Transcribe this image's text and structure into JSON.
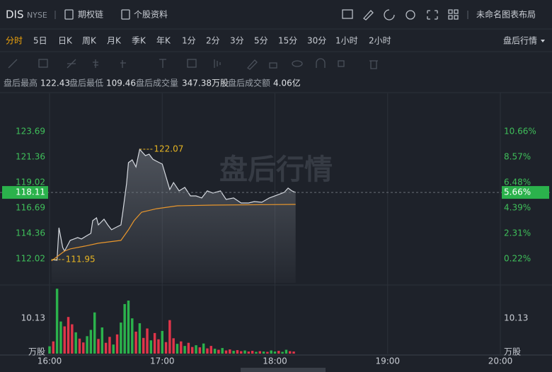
{
  "header": {
    "symbol": "DIS",
    "exchange": "NYSE",
    "links": [
      "期权链",
      "个股资料"
    ],
    "layout_name": "未命名图表布局"
  },
  "periods": {
    "items": [
      "分时",
      "5日",
      "日K",
      "周K",
      "月K",
      "季K",
      "年K",
      "1分",
      "2分",
      "3分",
      "5分",
      "15分",
      "30分",
      "1小时",
      "2小时"
    ],
    "active": 0,
    "right": "盘后行情"
  },
  "stats": [
    {
      "label": "盘后最高",
      "value": "122.43"
    },
    {
      "label": "盘后最低",
      "value": "109.46"
    },
    {
      "label": "盘后成交量",
      "value": "347.38万股"
    },
    {
      "label": "盘后成交额",
      "value": "4.06亿"
    }
  ],
  "chart_data": [
    {
      "type": "line",
      "watermark": "盘后行情",
      "xlim": [
        0,
        240
      ],
      "ylim": [
        109.81,
        127.2
      ],
      "yticks": [
        123.69,
        121.36,
        119.02,
        116.69,
        114.36,
        112.02
      ],
      "y2lim": [
        -1.754,
        13.805
      ],
      "y2ticks": [
        {
          "value": 10.66,
          "label": "10.66%"
        },
        {
          "value": 8.57,
          "label": "8.57%"
        },
        {
          "value": 6.48,
          "label": "6.48%"
        },
        {
          "value": 4.39,
          "label": "4.39%"
        },
        {
          "value": 2.31,
          "label": "2.31%"
        },
        {
          "value": 0.22,
          "label": "0.22%"
        }
      ],
      "series": [
        {
          "color": "#d6dae0",
          "x": [
            1,
            4,
            5,
            7,
            8,
            10,
            11,
            13,
            15,
            17,
            20,
            22,
            23,
            25,
            26,
            29,
            31,
            33,
            35,
            38,
            39,
            41,
            42,
            44,
            46,
            48,
            51,
            53,
            55,
            57,
            60,
            62,
            64,
            66,
            69,
            72,
            75,
            78,
            81,
            84,
            87,
            91,
            94,
            98,
            102,
            106,
            109,
            113,
            117,
            121,
            125,
            127,
            129,
            131
          ],
          "values": [
            111.95,
            111.89,
            114.87,
            113.06,
            112.73,
            113.38,
            113.71,
            113.84,
            113.97,
            113.84,
            114.16,
            114.36,
            115.52,
            115.78,
            115.13,
            115.65,
            115.13,
            114.68,
            114.87,
            115.13,
            116.3,
            118.9,
            120.84,
            121.1,
            120.45,
            122.07,
            121.49,
            121.62,
            121.16,
            120.97,
            120.71,
            119.54,
            118.38,
            119.02,
            118.25,
            118.57,
            117.79,
            117.79,
            117.6,
            118.25,
            118.05,
            118.25,
            117.47,
            117.6,
            117.14,
            117.14,
            117.27,
            117.21,
            117.6,
            117.86,
            118.12,
            118.51,
            118.25,
            118.11
          ]
        },
        {
          "color": "#e8962c",
          "x": [
            1,
            8,
            11,
            19,
            26,
            38,
            42,
            45,
            49,
            57,
            68,
            87,
            131
          ],
          "values": [
            111.83,
            112.73,
            112.93,
            113.19,
            113.45,
            113.71,
            114.68,
            115.52,
            116.3,
            116.62,
            116.88,
            116.95,
            117.01
          ]
        }
      ],
      "annotations": [
        {
          "x": 48,
          "value": 122.07
        },
        {
          "x": 1,
          "value": 111.95
        }
      ],
      "annotation_color": "#e6b422",
      "last_price": {
        "value": 118.11,
        "change": {
          "value": 5.66,
          "label": "5.66%"
        },
        "color": "#2bb24c"
      }
    },
    {
      "type": "bar",
      "unit": "万股",
      "xlim": [
        0,
        240
      ],
      "ylim": [
        0,
        19.25
      ],
      "yticks": [
        10.13
      ],
      "xticks": [
        {
          "value": 0,
          "label": "16:00"
        },
        {
          "value": 60,
          "label": "17:00"
        },
        {
          "value": 120,
          "label": "18:00"
        },
        {
          "value": 180,
          "label": "19:00"
        },
        {
          "value": 240,
          "label": "20:00"
        }
      ],
      "x": [
        0,
        2,
        4,
        6,
        8,
        10,
        12,
        14,
        16,
        18,
        20,
        22,
        24,
        26,
        28,
        30,
        32,
        34,
        36,
        38,
        40,
        42,
        44,
        46,
        48,
        50,
        52,
        54,
        56,
        58,
        60,
        62,
        64,
        66,
        68,
        70,
        72,
        74,
        76,
        78,
        80,
        82,
        84,
        86,
        88,
        90,
        92,
        94,
        96,
        98,
        100,
        102,
        104,
        106,
        108,
        110,
        112,
        114,
        116,
        118,
        120,
        122,
        124,
        126,
        128,
        130
      ],
      "values": [
        2.1,
        3.5,
        18.6,
        9.2,
        7.8,
        10.5,
        8.4,
        6.1,
        4.3,
        3.2,
        5.0,
        6.8,
        11.8,
        4.2,
        7.5,
        3.1,
        4.8,
        2.6,
        5.5,
        8.9,
        14.2,
        15.2,
        10.1,
        6.3,
        8.7,
        4.5,
        7.2,
        3.8,
        5.9,
        4.1,
        6.5,
        3.3,
        9.6,
        4.4,
        2.8,
        3.5,
        2.2,
        3.1,
        1.9,
        2.4,
        1.8,
        2.9,
        1.5,
        2.2,
        1.4,
        1.1,
        1.6,
        0.9,
        1.2,
        0.8,
        1.0,
        0.7,
        0.9,
        0.6,
        0.8,
        0.5,
        0.7,
        0.6,
        0.5,
        0.9,
        0.6,
        0.8,
        0.5,
        1.1,
        0.7,
        0.6
      ],
      "colors": [
        "#2bb24c",
        "#e0354a",
        "#2bb24c",
        "#2bb24c",
        "#e0354a",
        "#e0354a",
        "#e0354a",
        "#2bb24c",
        "#e0354a",
        "#e0354a",
        "#2bb24c",
        "#2bb24c",
        "#2bb24c",
        "#e0354a",
        "#2bb24c",
        "#e0354a",
        "#e0354a",
        "#2bb24c",
        "#e0354a",
        "#2bb24c",
        "#2bb24c",
        "#2bb24c",
        "#2bb24c",
        "#e0354a",
        "#2bb24c",
        "#e0354a",
        "#e0354a",
        "#2bb24c",
        "#e0354a",
        "#e0354a",
        "#2bb24c",
        "#e0354a",
        "#e0354a",
        "#e0354a",
        "#2bb24c",
        "#e0354a",
        "#2bb24c",
        "#e0354a",
        "#e0354a",
        "#2bb24c",
        "#e0354a",
        "#2bb24c",
        "#e0354a",
        "#e0354a",
        "#2bb24c",
        "#e0354a",
        "#2bb24c",
        "#e0354a",
        "#e0354a",
        "#2bb24c",
        "#e0354a",
        "#e0354a",
        "#2bb24c",
        "#e0354a",
        "#e0354a",
        "#2bb24c",
        "#e0354a",
        "#2bb24c",
        "#e0354a",
        "#2bb24c",
        "#2bb24c",
        "#e0354a",
        "#2bb24c",
        "#2bb24c",
        "#e0354a",
        "#e0354a"
      ]
    }
  ]
}
